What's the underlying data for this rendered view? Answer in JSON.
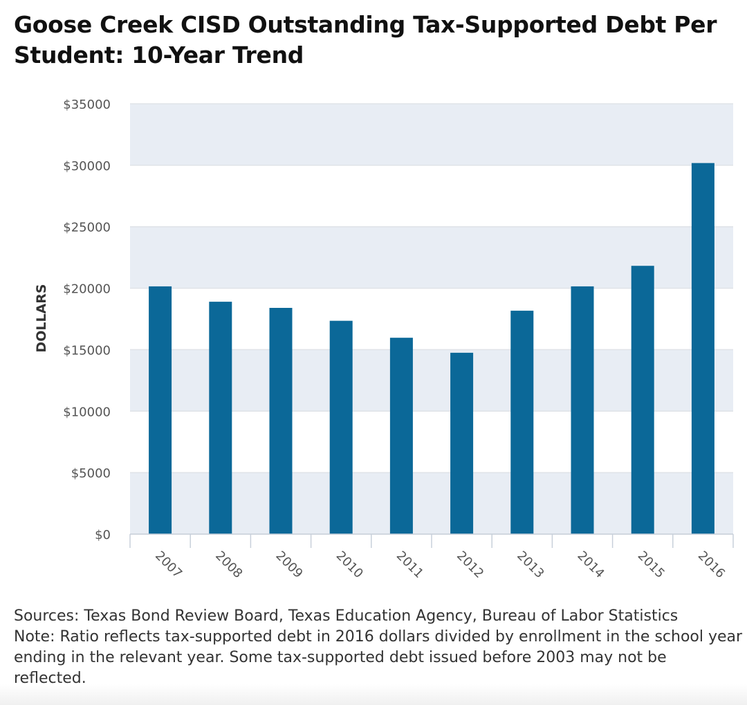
{
  "chart_data": {
    "type": "bar",
    "title": "Goose Creek CISD Outstanding Tax-Supported Debt Per Student: 10-Year Trend",
    "xlabel": "",
    "ylabel": "DOLLARS",
    "ylim": [
      0,
      35000
    ],
    "yticks": [
      0,
      5000,
      10000,
      15000,
      20000,
      25000,
      30000,
      35000
    ],
    "ytick_labels": [
      "$0",
      "$5000",
      "$10000",
      "$15000",
      "$20000",
      "$25000",
      "$30000",
      "$35000"
    ],
    "categories": [
      "2007",
      "2008",
      "2009",
      "2010",
      "2011",
      "2012",
      "2013",
      "2014",
      "2015",
      "2016"
    ],
    "values": [
      20150,
      18900,
      18400,
      17350,
      15970,
      14750,
      18170,
      20150,
      21820,
      30180
    ],
    "grid": true,
    "bar_color": "#0b6898",
    "band_color": "#e8edf4"
  },
  "notes": {
    "sources": "Sources: Texas Bond Review Board, Texas Education Agency, Bureau of Labor Statistics",
    "note": "Note: Ratio reflects tax-supported debt in 2016 dollars divided by enrollment in the school year ending in the relevant year. Some tax-supported debt issued before 2003 may not be reflected."
  }
}
